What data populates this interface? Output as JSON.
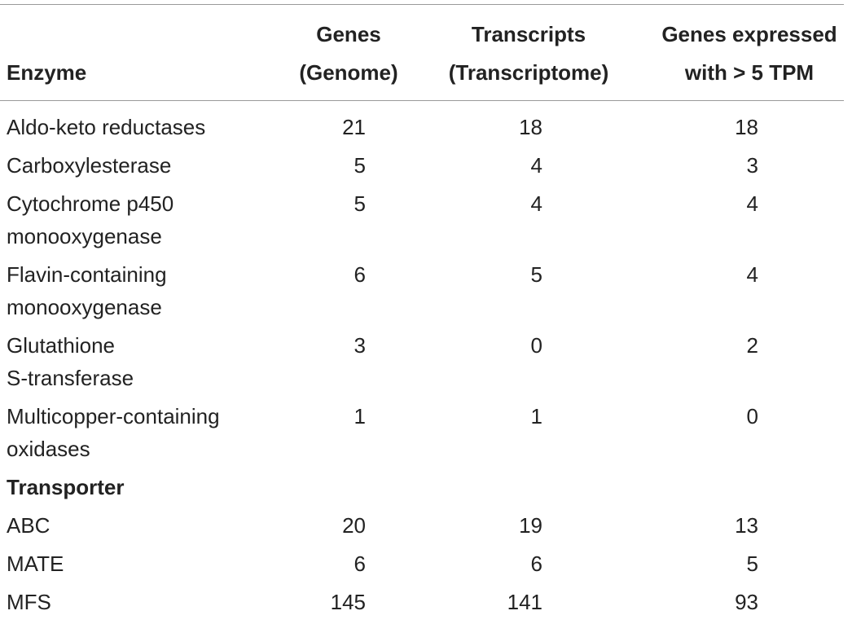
{
  "table": {
    "headers": {
      "enzyme": "Enzyme",
      "genes_line1": "Genes",
      "genes_line2": "(Genome)",
      "transcripts_line1": "Transcripts",
      "transcripts_line2": "(Transcriptome)",
      "expressed_line1": "Genes expressed",
      "expressed_line2": "with > 5 TPM"
    },
    "rows": [
      {
        "name_line1": "Aldo-keto reductases",
        "name_line2": "",
        "genes": "21",
        "transcripts": "18",
        "expressed": "18"
      },
      {
        "name_line1": "Carboxylesterase",
        "name_line2": "",
        "genes": "5",
        "transcripts": "4",
        "expressed": "3"
      },
      {
        "name_line1": "Cytochrome p450",
        "name_line2": "monooxygenase",
        "genes": "5",
        "transcripts": "4",
        "expressed": "4"
      },
      {
        "name_line1": "Flavin-containing",
        "name_line2": "monooxygenase",
        "genes": "6",
        "transcripts": "5",
        "expressed": "4"
      },
      {
        "name_line1": "Glutathione",
        "name_line2": "S-transferase",
        "genes": "3",
        "transcripts": "0",
        "expressed": "2"
      },
      {
        "name_line1": "Multicopper-containing",
        "name_line2": "oxidases",
        "genes": "1",
        "transcripts": "1",
        "expressed": "0"
      }
    ],
    "section_title": "Transporter",
    "transporter_rows": [
      {
        "name": "ABC",
        "genes": "20",
        "transcripts": "19",
        "expressed": "13"
      },
      {
        "name": "MATE",
        "genes": "6",
        "transcripts": "6",
        "expressed": "5"
      },
      {
        "name": "MFS",
        "genes": "145",
        "transcripts": "141",
        "expressed": "93"
      }
    ]
  }
}
